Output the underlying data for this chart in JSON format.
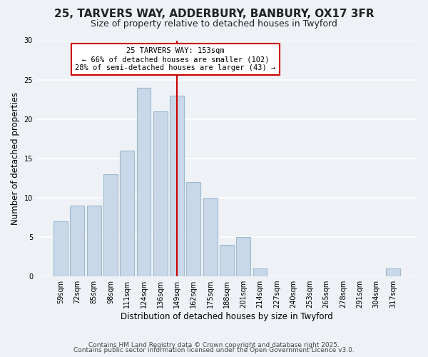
{
  "title_line1": "25, TARVERS WAY, ADDERBURY, BANBURY, OX17 3FR",
  "title_line2": "Size of property relative to detached houses in Twyford",
  "xlabel": "Distribution of detached houses by size in Twyford",
  "ylabel": "Number of detached properties",
  "bar_labels": [
    "59sqm",
    "72sqm",
    "85sqm",
    "98sqm",
    "111sqm",
    "124sqm",
    "136sqm",
    "149sqm",
    "162sqm",
    "175sqm",
    "188sqm",
    "201sqm",
    "214sqm",
    "227sqm",
    "240sqm",
    "253sqm",
    "265sqm",
    "278sqm",
    "291sqm",
    "304sqm",
    "317sqm"
  ],
  "bar_values": [
    7,
    9,
    9,
    13,
    16,
    24,
    21,
    23,
    12,
    10,
    4,
    5,
    1,
    0,
    0,
    0,
    0,
    0,
    0,
    0,
    1
  ],
  "bar_color": "#c8d8e8",
  "bar_edge_color": "#a0b8cc",
  "highlight_bar_index": 7,
  "vline_color": "#cc0000",
  "ylim": [
    0,
    30
  ],
  "yticks": [
    0,
    5,
    10,
    15,
    20,
    25,
    30
  ],
  "annotation_title": "25 TARVERS WAY: 153sqm",
  "annotation_line1": "← 66% of detached houses are smaller (102)",
  "annotation_line2": "28% of semi-detached houses are larger (43) →",
  "annotation_box_color": "#ffffff",
  "annotation_box_edge": "#cc0000",
  "footer_line1": "Contains HM Land Registry data © Crown copyright and database right 2025.",
  "footer_line2": "Contains public sector information licensed under the Open Government Licence v3.0.",
  "background_color": "#eef2f7",
  "grid_color": "#ffffff",
  "title_fontsize": 11,
  "subtitle_fontsize": 9,
  "ylabel_fontsize": 8.5,
  "xlabel_fontsize": 8.5,
  "tick_fontsize": 7,
  "footer_fontsize": 6.5,
  "annot_fontsize": 7.5
}
